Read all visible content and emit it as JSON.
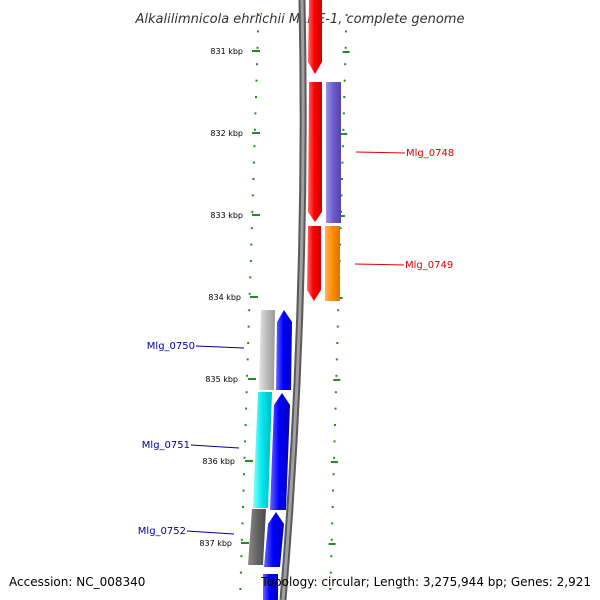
{
  "title": "Alkalilimnicola ehrlichii MLHE-1, complete genome",
  "footer": {
    "accession": "Accession: NC_008340",
    "summary": "Topology: circular; Length: 3,275,944 bp; Genes: 2,921"
  },
  "scale": {
    "labels": [
      {
        "kbp": 831,
        "text": "831 kbp"
      },
      {
        "kbp": 832,
        "text": "832 kbp"
      },
      {
        "kbp": 833,
        "text": "833 kbp"
      },
      {
        "kbp": 834,
        "text": "834 kbp"
      },
      {
        "kbp": 835,
        "text": "835 kbp"
      },
      {
        "kbp": 836,
        "text": "836 kbp"
      },
      {
        "kbp": 837,
        "text": "837 kbp"
      }
    ]
  },
  "gene_labels": [
    {
      "name": "Mlg_0748",
      "color": "#dd0000"
    },
    {
      "name": "Mlg_0749",
      "color": "#dd0000"
    },
    {
      "name": "Mlg_0750",
      "color": "#000099"
    },
    {
      "name": "Mlg_0751",
      "color": "#000099"
    },
    {
      "name": "Mlg_0752",
      "color": "#000099"
    }
  ],
  "colors": {
    "backbone": "#7a7a7a",
    "ticks": "#228b22",
    "forward_cds": "#ff0000",
    "reverse_cds": "#0000ff",
    "mlg_0748": "#6a5acd",
    "mlg_0749": "#ff8c00",
    "mlg_0750": "#bbbbbb",
    "mlg_0751": "#00e5ee",
    "mlg_0752": "#666666"
  }
}
